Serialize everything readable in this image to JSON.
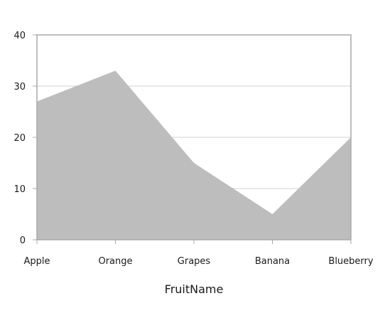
{
  "chart_data": {
    "type": "area",
    "categories": [
      "Apple",
      "Orange",
      "Grapes",
      "Banana",
      "Blueberry"
    ],
    "series": [
      {
        "values": [
          27,
          33,
          15,
          5,
          20
        ]
      }
    ],
    "xlabel": "FruitName",
    "ylabel": "",
    "ylim": [
      0,
      40
    ],
    "yticks": [
      "0",
      "10",
      "20",
      "30",
      "40"
    ],
    "grid": true,
    "colors": {
      "area": "#bdbdbd",
      "grid": "#d0d0d0",
      "axis": "#a8a8a8",
      "text": "#1a1a1a"
    }
  }
}
